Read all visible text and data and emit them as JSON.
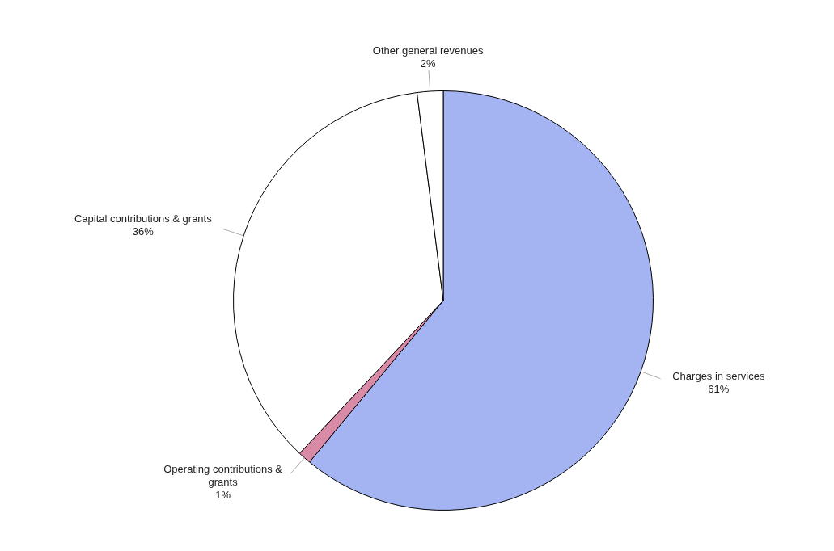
{
  "chart_data": {
    "type": "pie",
    "categories": [
      "Charges in services",
      "Operating contributions & grants",
      "Capital contributions & grants",
      "Other general revenues"
    ],
    "values": [
      61,
      1,
      36,
      2
    ],
    "value_labels": [
      "61%",
      "1%",
      "36%",
      "2%"
    ],
    "colors": [
      "#a4b4f2",
      "#d88aa6",
      "#ffffff",
      "#ffffff"
    ],
    "legend": false
  }
}
